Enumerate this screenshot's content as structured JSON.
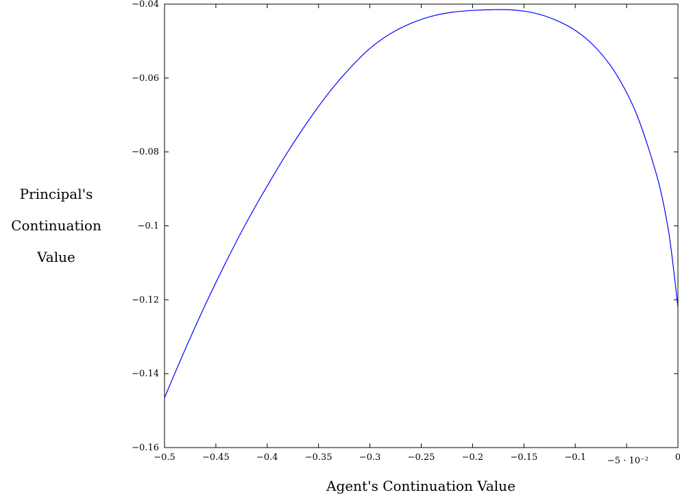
{
  "chart_data": {
    "type": "line",
    "title": "",
    "xlabel": "Agent's Continuation Value",
    "ylabel_lines": [
      "Principal's",
      "Continuation",
      "Value"
    ],
    "xlim": [
      -0.5,
      0
    ],
    "ylim": [
      -0.16,
      -0.04
    ],
    "x_scale_note": "−5 · 10⁻²",
    "x_ticks": [
      {
        "value": -0.5,
        "label": "−0.5"
      },
      {
        "value": -0.45,
        "label": "−0.45"
      },
      {
        "value": -0.4,
        "label": "−0.4"
      },
      {
        "value": -0.35,
        "label": "−0.35"
      },
      {
        "value": -0.3,
        "label": "−0.3"
      },
      {
        "value": -0.25,
        "label": "−0.25"
      },
      {
        "value": -0.2,
        "label": "−0.2"
      },
      {
        "value": -0.15,
        "label": "−0.15"
      },
      {
        "value": -0.1,
        "label": "−0.1"
      },
      {
        "value": -0.05,
        "label": ""
      },
      {
        "value": 0,
        "label": "0"
      }
    ],
    "y_ticks": [
      {
        "value": -0.16,
        "label": "−0.16"
      },
      {
        "value": -0.14,
        "label": "−0.14"
      },
      {
        "value": -0.12,
        "label": "−0.12"
      },
      {
        "value": -0.1,
        "label": "−0.1"
      },
      {
        "value": -0.08,
        "label": "−0.08"
      },
      {
        "value": -0.06,
        "label": "−0.06"
      },
      {
        "value": -0.04,
        "label": "−0.04"
      }
    ],
    "grid": false,
    "series": [
      {
        "color": "#0000ff",
        "points": [
          [
            -0.5,
            -0.1465
          ],
          [
            -0.48,
            -0.1335
          ],
          [
            -0.46,
            -0.1212
          ],
          [
            -0.44,
            -0.1097
          ],
          [
            -0.42,
            -0.099
          ],
          [
            -0.4,
            -0.0892
          ],
          [
            -0.38,
            -0.08
          ],
          [
            -0.36,
            -0.0716
          ],
          [
            -0.34,
            -0.064
          ],
          [
            -0.32,
            -0.0575
          ],
          [
            -0.3,
            -0.052
          ],
          [
            -0.28,
            -0.048
          ],
          [
            -0.26,
            -0.0452
          ],
          [
            -0.24,
            -0.0433
          ],
          [
            -0.22,
            -0.0422
          ],
          [
            -0.2,
            -0.0417
          ],
          [
            -0.18,
            -0.0415
          ],
          [
            -0.16,
            -0.0416
          ],
          [
            -0.14,
            -0.0424
          ],
          [
            -0.12,
            -0.0442
          ],
          [
            -0.1,
            -0.0471
          ],
          [
            -0.08,
            -0.0518
          ],
          [
            -0.06,
            -0.059
          ],
          [
            -0.04,
            -0.07
          ],
          [
            -0.02,
            -0.087
          ],
          [
            -0.01,
            -0.1
          ],
          [
            -0.005,
            -0.11
          ],
          [
            0.0,
            -0.122
          ]
        ]
      }
    ]
  }
}
